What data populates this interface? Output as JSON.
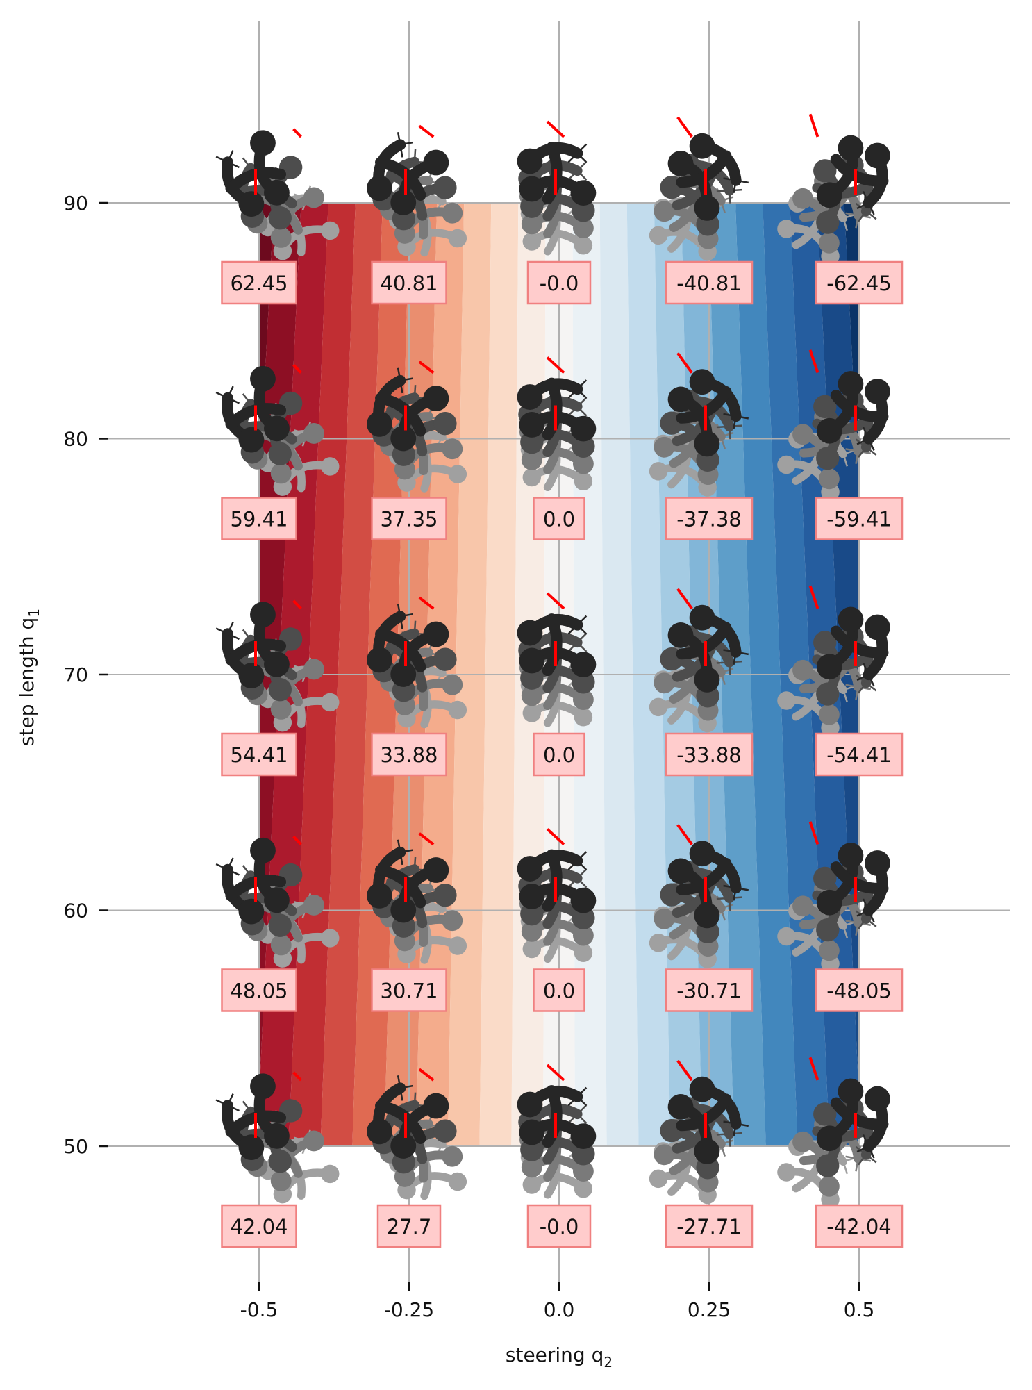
{
  "chart_data": {
    "type": "heatmap",
    "xlabel": "steering q",
    "xlabel_sub": "2",
    "ylabel": "step length q",
    "ylabel_sub": "1",
    "x_ticks": [
      "-0.5",
      "-0.25",
      "0.0",
      "0.25",
      "0.5"
    ],
    "y_ticks": [
      "50",
      "60",
      "70",
      "80",
      "90"
    ],
    "x_tick_values": [
      -0.5,
      -0.25,
      0.0,
      0.25,
      0.5
    ],
    "y_tick_values": [
      50,
      60,
      70,
      80,
      90
    ],
    "xlim": [
      -0.75,
      0.75
    ],
    "ylim": [
      44,
      98
    ],
    "field_x_range": [
      -0.5,
      0.5
    ],
    "field_y_range": [
      50,
      90
    ],
    "colormap": "RdBu",
    "grid": true,
    "labels": [
      {
        "q1": 90,
        "values": [
          "62.45",
          "40.81",
          "-0.0",
          "-40.81",
          "-62.45"
        ]
      },
      {
        "q1": 80,
        "values": [
          "59.41",
          "37.35",
          "0.0",
          "-37.38",
          "-59.41"
        ]
      },
      {
        "q1": 70,
        "values": [
          "54.41",
          "33.88",
          "0.0",
          "-33.88",
          "-54.41"
        ]
      },
      {
        "q1": 60,
        "values": [
          "48.05",
          "30.71",
          "0.0",
          "-30.71",
          "-48.05"
        ]
      },
      {
        "q1": 50,
        "values": [
          "42.04",
          "27.7",
          "-0.0",
          "-27.71",
          "-42.04"
        ]
      }
    ],
    "colors": {
      "label_fill": "#ffcccc",
      "label_border": "#f08080",
      "robot_dark": "#262626",
      "robot_mid": "#4d4d4d",
      "robot_light": "#7a7a7a",
      "robot_pale": "#a0a0a0",
      "heading_marker": "#ff0000",
      "grid": "#b0b0b0"
    }
  }
}
